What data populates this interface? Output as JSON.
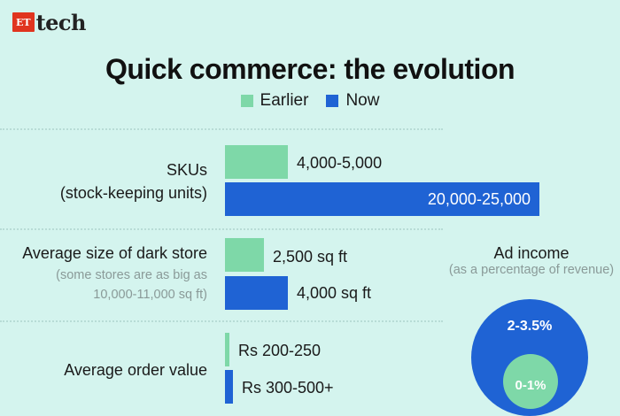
{
  "brand": {
    "et": "ET",
    "tech": "tech"
  },
  "colors": {
    "background": "#d4f4ee",
    "earlier": "#7ed8a8",
    "now": "#1f63d4"
  },
  "chart_data": {
    "type": "bar",
    "title": "Quick commerce: the evolution",
    "legend": [
      "Earlier",
      "Now"
    ],
    "legend_position": "top-center",
    "series": [
      {
        "name": "Earlier",
        "values": [
          4500,
          2500,
          225
        ]
      },
      {
        "name": "Now",
        "values": [
          22500,
          4000,
          400
        ]
      }
    ],
    "categories": [
      {
        "label": "SKUs",
        "sublabel": "(stock-keeping units)",
        "earlier": "4,000-5,000",
        "now": "20,000-25,000"
      },
      {
        "label": "Average size of dark store",
        "sublabel": "(some stores are as big as 10,000-11,000 sq ft)",
        "earlier": "2,500 sq ft",
        "now": "4,000 sq ft"
      },
      {
        "label": "Average order value",
        "sublabel": "",
        "earlier": "Rs 200-250",
        "now": "Rs 300-500+"
      }
    ],
    "ad_income": {
      "title": "Ad income",
      "subtitle": "(as a percentage of revenue)",
      "earlier": "0-1%",
      "now": "2-3.5%"
    }
  }
}
